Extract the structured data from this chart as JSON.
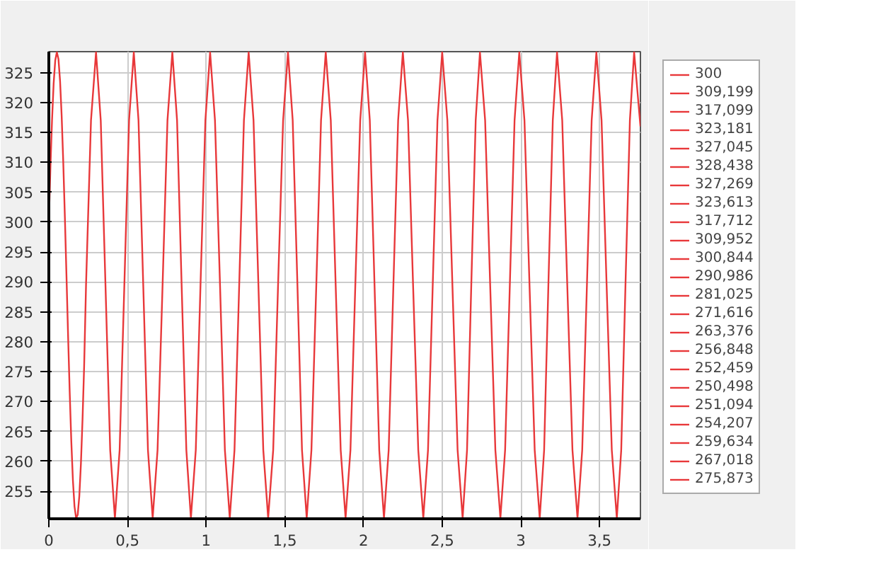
{
  "chart_data": {
    "type": "line",
    "x": [
      0,
      0.0102,
      0.0204,
      0.0306,
      0.0408,
      0.051,
      0.0612,
      0.0714,
      0.0816,
      0.0918,
      0.102,
      0.1122,
      0.1224,
      0.1326,
      0.1428,
      0.153,
      0.1632,
      0.1734,
      0.1836,
      0.1938,
      0.204,
      0.2142,
      0.2244,
      0.2365,
      0.268,
      0.3,
      0.33,
      0.36,
      0.39,
      0.42,
      0.45,
      0.48,
      0.51,
      0.54,
      0.57,
      0.6,
      0.63,
      0.66,
      0.691,
      0.723,
      0.754,
      0.785,
      0.815,
      0.844,
      0.874,
      0.903,
      0.934,
      0.964,
      0.995,
      1.025,
      1.056,
      1.088,
      1.119,
      1.15,
      1.18,
      1.21,
      1.24,
      1.27,
      1.301,
      1.332,
      1.363,
      1.394,
      1.426,
      1.457,
      1.489,
      1.52,
      1.55,
      1.58,
      1.609,
      1.639,
      1.669,
      1.7,
      1.73,
      1.76,
      1.792,
      1.823,
      1.855,
      1.886,
      1.917,
      1.948,
      1.979,
      2.01,
      2.04,
      2.07,
      2.1,
      2.13,
      2.16,
      2.19,
      2.22,
      2.25,
      2.283,
      2.315,
      2.348,
      2.38,
      2.41,
      2.44,
      2.47,
      2.5,
      2.533,
      2.565,
      2.598,
      2.63,
      2.658,
      2.685,
      2.713,
      2.74,
      2.773,
      2.805,
      2.838,
      2.87,
      2.9,
      2.93,
      2.96,
      2.99,
      3.023,
      3.055,
      3.088,
      3.12,
      3.148,
      3.175,
      3.203,
      3.23,
      3.263,
      3.295,
      3.328,
      3.36,
      3.39,
      3.42,
      3.45,
      3.48,
      3.513,
      3.545,
      3.578,
      3.61,
      3.638,
      3.665,
      3.693,
      3.72,
      3.76
    ],
    "series": [
      {
        "color": "#e8383a",
        "values": [
          300,
          309.199,
          317.099,
          323.181,
          327.045,
          328.438,
          327.269,
          323.613,
          317.712,
          309.952,
          300.844,
          290.986,
          281.025,
          271.616,
          263.376,
          256.848,
          252.459,
          250.498,
          251.094,
          254.207,
          259.634,
          267.018,
          275.873,
          289.5,
          317.0,
          328.4,
          317.0,
          289.5,
          261.9,
          250.5,
          261.9,
          289.5,
          317.0,
          328.4,
          317.0,
          289.5,
          261.9,
          250.5,
          261.9,
          289.5,
          317.0,
          328.4,
          317.0,
          289.5,
          261.9,
          250.5,
          261.9,
          289.5,
          317.0,
          328.4,
          317.0,
          289.5,
          261.9,
          250.5,
          261.9,
          289.5,
          317.0,
          328.4,
          317.0,
          289.5,
          261.9,
          250.5,
          261.9,
          289.5,
          317.0,
          328.4,
          317.0,
          289.5,
          261.9,
          250.5,
          261.9,
          289.5,
          317.0,
          328.4,
          317.0,
          289.5,
          261.9,
          250.5,
          261.9,
          289.5,
          317.0,
          328.4,
          317.0,
          289.5,
          261.9,
          250.5,
          261.9,
          289.5,
          317.0,
          328.4,
          317.0,
          289.5,
          261.9,
          250.5,
          261.9,
          289.5,
          317.0,
          328.4,
          317.0,
          289.5,
          261.9,
          250.5,
          261.9,
          289.5,
          317.0,
          328.4,
          317.0,
          289.5,
          261.9,
          250.5,
          261.9,
          289.5,
          317.0,
          328.4,
          317.0,
          289.5,
          261.9,
          250.5,
          261.9,
          289.5,
          317.0,
          328.4,
          317.0,
          289.5,
          261.9,
          250.5,
          261.9,
          289.5,
          317.0,
          328.4,
          317.0,
          289.5,
          261.9,
          250.5,
          261.9,
          289.5,
          317.0,
          328.4,
          316
        ]
      }
    ],
    "xlim": [
      0,
      3.76
    ],
    "ylim": [
      250.4,
      328.5
    ],
    "xticks": [
      0,
      {
        "value": 0.5,
        "label": "0,5"
      },
      1,
      {
        "value": 1.5,
        "label": "1,5"
      },
      2,
      {
        "value": 2.5,
        "label": "2,5"
      },
      3,
      {
        "value": 3.5,
        "label": "3,5"
      }
    ],
    "yticks": [
      255,
      260,
      265,
      270,
      275,
      280,
      285,
      290,
      295,
      300,
      305,
      310,
      315,
      320,
      325
    ],
    "grid": true,
    "annotations": [
      "300",
      "309,199",
      "317,099",
      "323,181",
      "327,045",
      "328,438",
      "327,269",
      "323,613",
      "317,712",
      "309,952",
      "300,844",
      "290,986",
      "281,025",
      "271,616",
      "263,376",
      "256,848",
      "252,459",
      "250,498",
      "251,094",
      "254,207",
      "259,634",
      "267,018",
      "275,873"
    ]
  }
}
